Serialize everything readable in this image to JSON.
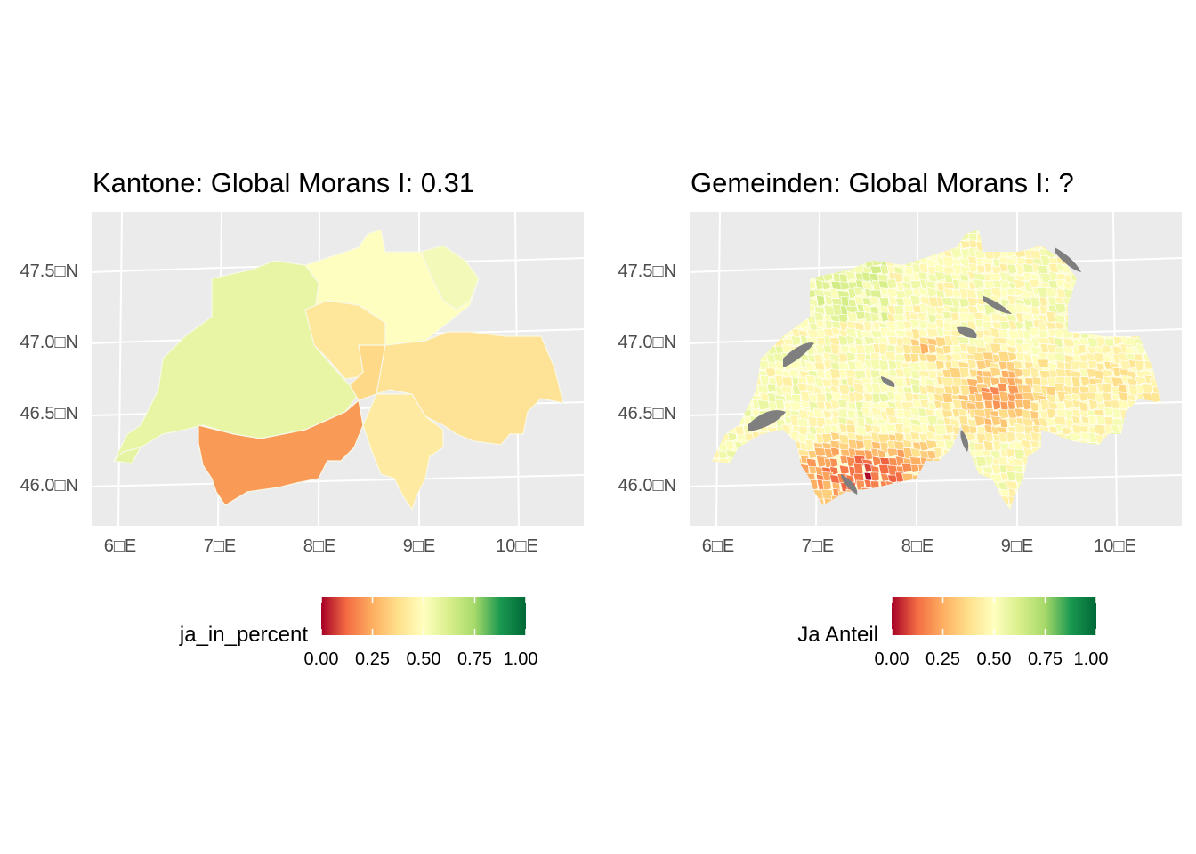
{
  "panels": [
    {
      "title": "Kantone: Global Morans I: 0.31",
      "legend_title": "ja_in_percent",
      "y_ticks": [
        "47.5□N",
        "47.0□N",
        "46.5□N",
        "46.0□N"
      ],
      "x_ticks": [
        "6□E",
        "7□E",
        "8□E",
        "9□E",
        "10□E"
      ],
      "legend_ticks": [
        "0.00",
        "0.25",
        "0.50",
        "0.75",
        "1.00"
      ]
    },
    {
      "title": "Gemeinden: Global Morans I: ?",
      "legend_title": "Ja Anteil",
      "y_ticks": [
        "47.5□N",
        "47.0□N",
        "46.5□N",
        "46.0□N"
      ],
      "x_ticks": [
        "6□E",
        "7□E",
        "8□E",
        "9□E",
        "10□E"
      ],
      "legend_ticks": [
        "0.00",
        "0.25",
        "0.50",
        "0.75",
        "1.00"
      ]
    }
  ],
  "chart_data": [
    {
      "type": "choropleth",
      "title": "Kantone: Global Morans I: 0.31",
      "legend_title": "ja_in_percent",
      "x_ticks_deg": [
        6,
        7,
        8,
        9,
        10
      ],
      "y_ticks_deg": [
        47.5,
        47.0,
        46.5,
        46.0
      ],
      "scale_limits": [
        0,
        1
      ],
      "palette": [
        "#a50026",
        "#f46d43",
        "#fdae61",
        "#fee08b",
        "#ffffbf",
        "#d9ef8b",
        "#a6d96a",
        "#1a9850",
        "#006837"
      ],
      "regions": [
        {
          "name": "west",
          "value": 0.6
        },
        {
          "name": "north-central",
          "value": 0.53
        },
        {
          "name": "central",
          "value": 0.4
        },
        {
          "name": "south-central",
          "value": 0.45
        },
        {
          "name": "east",
          "value": 0.42
        },
        {
          "name": "valais",
          "value": 0.3
        },
        {
          "name": "north-east",
          "value": 0.52
        }
      ]
    },
    {
      "type": "choropleth",
      "title": "Gemeinden: Global Morans I: ?",
      "legend_title": "Ja Anteil",
      "x_ticks_deg": [
        6,
        7,
        8,
        9,
        10
      ],
      "y_ticks_deg": [
        47.5,
        47.0,
        46.5,
        46.0
      ],
      "scale_limits": [
        0,
        1
      ],
      "palette": [
        "#a50026",
        "#f46d43",
        "#fdae61",
        "#fee08b",
        "#ffffbf",
        "#d9ef8b",
        "#a6d96a",
        "#1a9850",
        "#006837"
      ],
      "lakes_color": "#7f7f7f"
    }
  ]
}
